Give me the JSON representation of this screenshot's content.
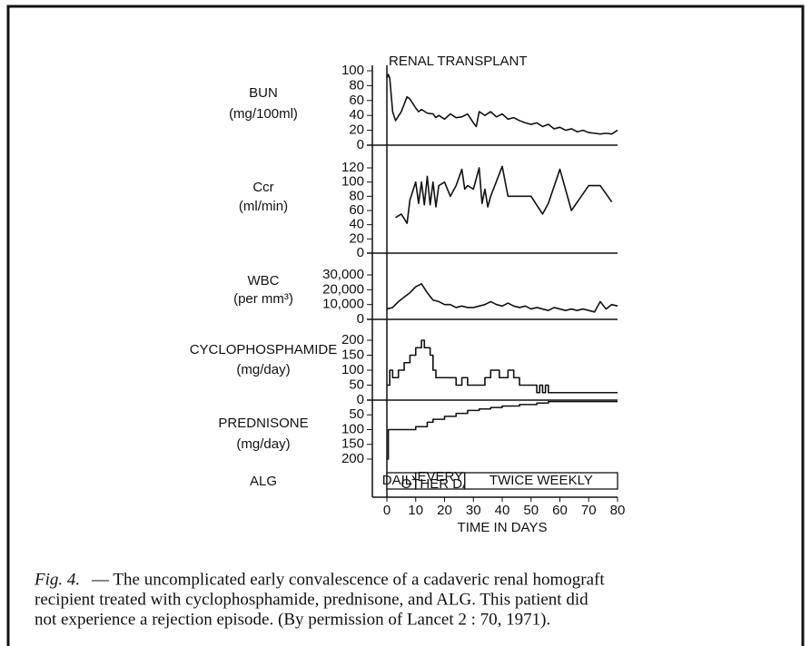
{
  "chart_data": [
    {
      "type": "line",
      "y_label": "BUN",
      "y_unit": "(mg/100ml)",
      "annotation": "RENAL TRANSPLANT",
      "x": [
        0,
        0.5,
        1,
        2,
        3,
        5,
        7,
        8,
        10,
        11,
        12,
        14,
        16,
        17,
        18,
        20,
        22,
        24,
        26,
        28,
        30,
        31,
        32,
        34,
        36,
        38,
        40,
        42,
        44,
        46,
        48,
        50,
        52,
        54,
        56,
        58,
        60,
        62,
        64,
        66,
        68,
        70,
        72,
        74,
        76,
        78,
        80
      ],
      "values": [
        90,
        95,
        90,
        45,
        33,
        45,
        65,
        62,
        50,
        45,
        48,
        43,
        42,
        37,
        40,
        35,
        42,
        37,
        38,
        42,
        30,
        25,
        45,
        40,
        45,
        38,
        42,
        35,
        37,
        33,
        30,
        28,
        30,
        25,
        28,
        22,
        24,
        20,
        22,
        18,
        20,
        17,
        16,
        15,
        16,
        15,
        20
      ],
      "color": "#111",
      "ylim": [
        0,
        100
      ],
      "yticks": [
        0,
        20,
        40,
        60,
        80,
        100
      ]
    },
    {
      "type": "line",
      "y_label": "Ccr",
      "y_unit": "(ml/min)",
      "x": [
        3,
        5,
        7,
        8,
        10,
        11,
        12,
        13,
        14,
        15,
        16,
        17,
        18,
        20,
        22,
        24,
        26,
        27,
        28,
        30,
        32,
        33,
        34,
        35,
        36,
        40,
        42,
        50,
        54,
        56,
        60,
        64,
        70,
        74,
        78
      ],
      "values": [
        50,
        55,
        42,
        75,
        100,
        70,
        100,
        68,
        108,
        68,
        100,
        65,
        95,
        100,
        80,
        95,
        118,
        90,
        95,
        90,
        120,
        70,
        90,
        65,
        80,
        122,
        80,
        80,
        55,
        70,
        118,
        60,
        95,
        95,
        72
      ],
      "color": "#111",
      "ylim": [
        0,
        120
      ],
      "yticks": [
        0,
        20,
        40,
        60,
        80,
        100,
        120
      ]
    },
    {
      "type": "line",
      "y_label": "WBC",
      "y_unit": "(per mm³)",
      "x": [
        0,
        2,
        4,
        6,
        8,
        10,
        12,
        14,
        16,
        18,
        20,
        22,
        24,
        26,
        28,
        30,
        32,
        34,
        36,
        38,
        40,
        42,
        44,
        46,
        48,
        50,
        52,
        54,
        56,
        58,
        60,
        62,
        64,
        66,
        68,
        70,
        72,
        74,
        76,
        78,
        80
      ],
      "values": [
        7000,
        8000,
        12000,
        15000,
        18000,
        22000,
        24000,
        18000,
        13000,
        12000,
        10000,
        10000,
        8000,
        9000,
        8000,
        8000,
        9000,
        10000,
        12000,
        10000,
        9000,
        11000,
        9000,
        8000,
        9000,
        7000,
        8000,
        7000,
        6000,
        8000,
        7000,
        6000,
        7000,
        6000,
        7000,
        6000,
        5000,
        12000,
        7000,
        10000,
        9000
      ],
      "color": "#111",
      "ylim": [
        0,
        30000
      ],
      "yticks": [
        0,
        {
          "value": 10000,
          "label": "10,000"
        },
        {
          "value": 20000,
          "label": "20,000"
        },
        {
          "value": 30000,
          "label": "30,000"
        }
      ]
    },
    {
      "type": "step",
      "y_label": "CYCLOPHOSPHAMIDE",
      "y_unit": "(mg/day)",
      "x": [
        0,
        1,
        2,
        4,
        6,
        8,
        10,
        12,
        13,
        15,
        16,
        17,
        22,
        24,
        26,
        28,
        34,
        36,
        39,
        42,
        44,
        46,
        52,
        53,
        54,
        55,
        56,
        80
      ],
      "values": [
        50,
        100,
        75,
        100,
        125,
        150,
        175,
        200,
        175,
        150,
        100,
        75,
        75,
        50,
        75,
        50,
        75,
        100,
        75,
        100,
        75,
        50,
        25,
        50,
        25,
        50,
        25,
        25
      ],
      "color": "#111",
      "ylim": [
        0,
        200
      ],
      "yticks": [
        0,
        50,
        100,
        150,
        200
      ]
    },
    {
      "type": "step",
      "y_label": "PREDNISONE",
      "y_unit": "(mg/day)",
      "inverted": true,
      "x": [
        0,
        0.5,
        10,
        14,
        16,
        20,
        24,
        28,
        32,
        36,
        40,
        46,
        52,
        56,
        80
      ],
      "values": [
        200,
        100,
        90,
        75,
        65,
        55,
        45,
        35,
        30,
        25,
        20,
        15,
        10,
        5,
        5
      ],
      "color": "#111",
      "ylim": [
        0,
        200
      ],
      "yticks": [
        50,
        100,
        150,
        200
      ]
    },
    {
      "type": "timeline",
      "y_label": "ALG",
      "segments": [
        {
          "label": [
            "DAILY"
          ],
          "start": 0,
          "end": 10
        },
        {
          "label": [
            "EVERY",
            "OTHER DAY"
          ],
          "start": 10,
          "end": 27
        },
        {
          "label": [
            "TWICE WEEKLY"
          ],
          "start": 27,
          "end": 80
        }
      ],
      "xlim": [
        0,
        80
      ],
      "xticks": [
        0,
        10,
        20,
        30,
        40,
        50,
        60,
        70,
        80
      ],
      "x_label": "TIME IN DAYS"
    }
  ],
  "caption": {
    "label": "Fig. 4.",
    "lines": [
      "— The uncomplicated early convalescence of a cadaveric renal homograft",
      "recipient treated with cyclophosphamide, prednisone, and ALG. This patient did",
      "not experience a rejection episode. (By permission of Lancet 2 : 70, 1971)."
    ]
  }
}
